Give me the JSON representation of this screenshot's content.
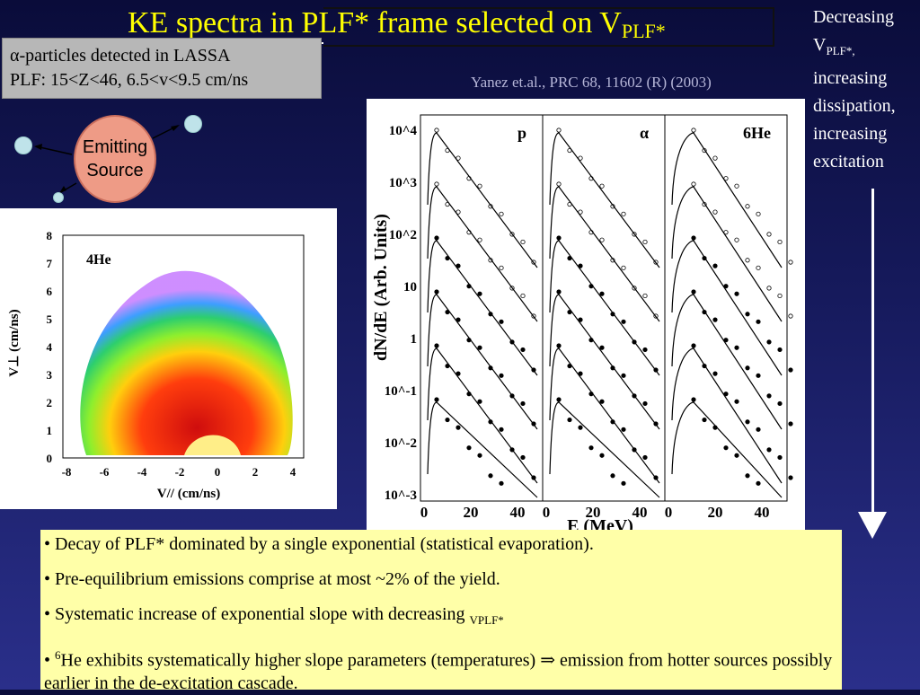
{
  "title": {
    "main": "KE spectra in PLF* frame selected on V",
    "sub": "PLF*"
  },
  "info_box": {
    "line1": "α-particles detected in LASSA",
    "line2": "PLF: 15<Z<46, 6.5<v<9.5 cm/ns"
  },
  "citation": "Yanez et.al., PRC 68, 11602 (R) (2003)",
  "right_note": {
    "line1": "Decreasing",
    "line2_main": "V",
    "line2_sub": "PLF*,",
    "line3": "increasing",
    "line4": "dissipation,",
    "line5": "increasing",
    "line6": "excitation"
  },
  "source": {
    "label_line1": "Emitting",
    "label_line2": "Source"
  },
  "heatmap": {
    "label": "4He",
    "xlabel": "V// (cm/ns)",
    "ylabel": "V⊥ (cm/ns)",
    "xticks": [
      "-8",
      "-6",
      "-4",
      "-2",
      "0",
      "2",
      "4"
    ],
    "yticks": [
      "0",
      "1",
      "2",
      "3",
      "4",
      "5",
      "6",
      "7",
      "8"
    ]
  },
  "spectra": {
    "ylabel": "dN/dE (Arb. Units)",
    "xlabel": "E (MeV)",
    "panels": [
      "p",
      "α",
      "6He"
    ],
    "xticks": [
      "0",
      "20",
      "40"
    ],
    "yticks": [
      "10^4",
      "10^3",
      "10^2",
      "10",
      "1",
      "10^-1",
      "10^-2",
      "10^-3"
    ]
  },
  "bullets": [
    "• Decay of PLF* dominated by a single exponential (statistical evaporation).",
    "• Pre-equilibrium emissions comprise at most ~2% of the yield.",
    "• Systematic increase of exponential slope with decreasing ",
    "He exhibits systematically higher slope parameters (temperatures) ⇒ emission from hotter sources possibly earlier in the de-excitation cascade."
  ],
  "bullet3_sub": "VPLF*",
  "bullet4_prefix": "• ",
  "bullet4_sup": "6",
  "colors": {
    "title": "#ffff00",
    "bullet_bg": "#ffffa8",
    "info_bg": "#b7b7b7",
    "source": "#ee9b86"
  }
}
